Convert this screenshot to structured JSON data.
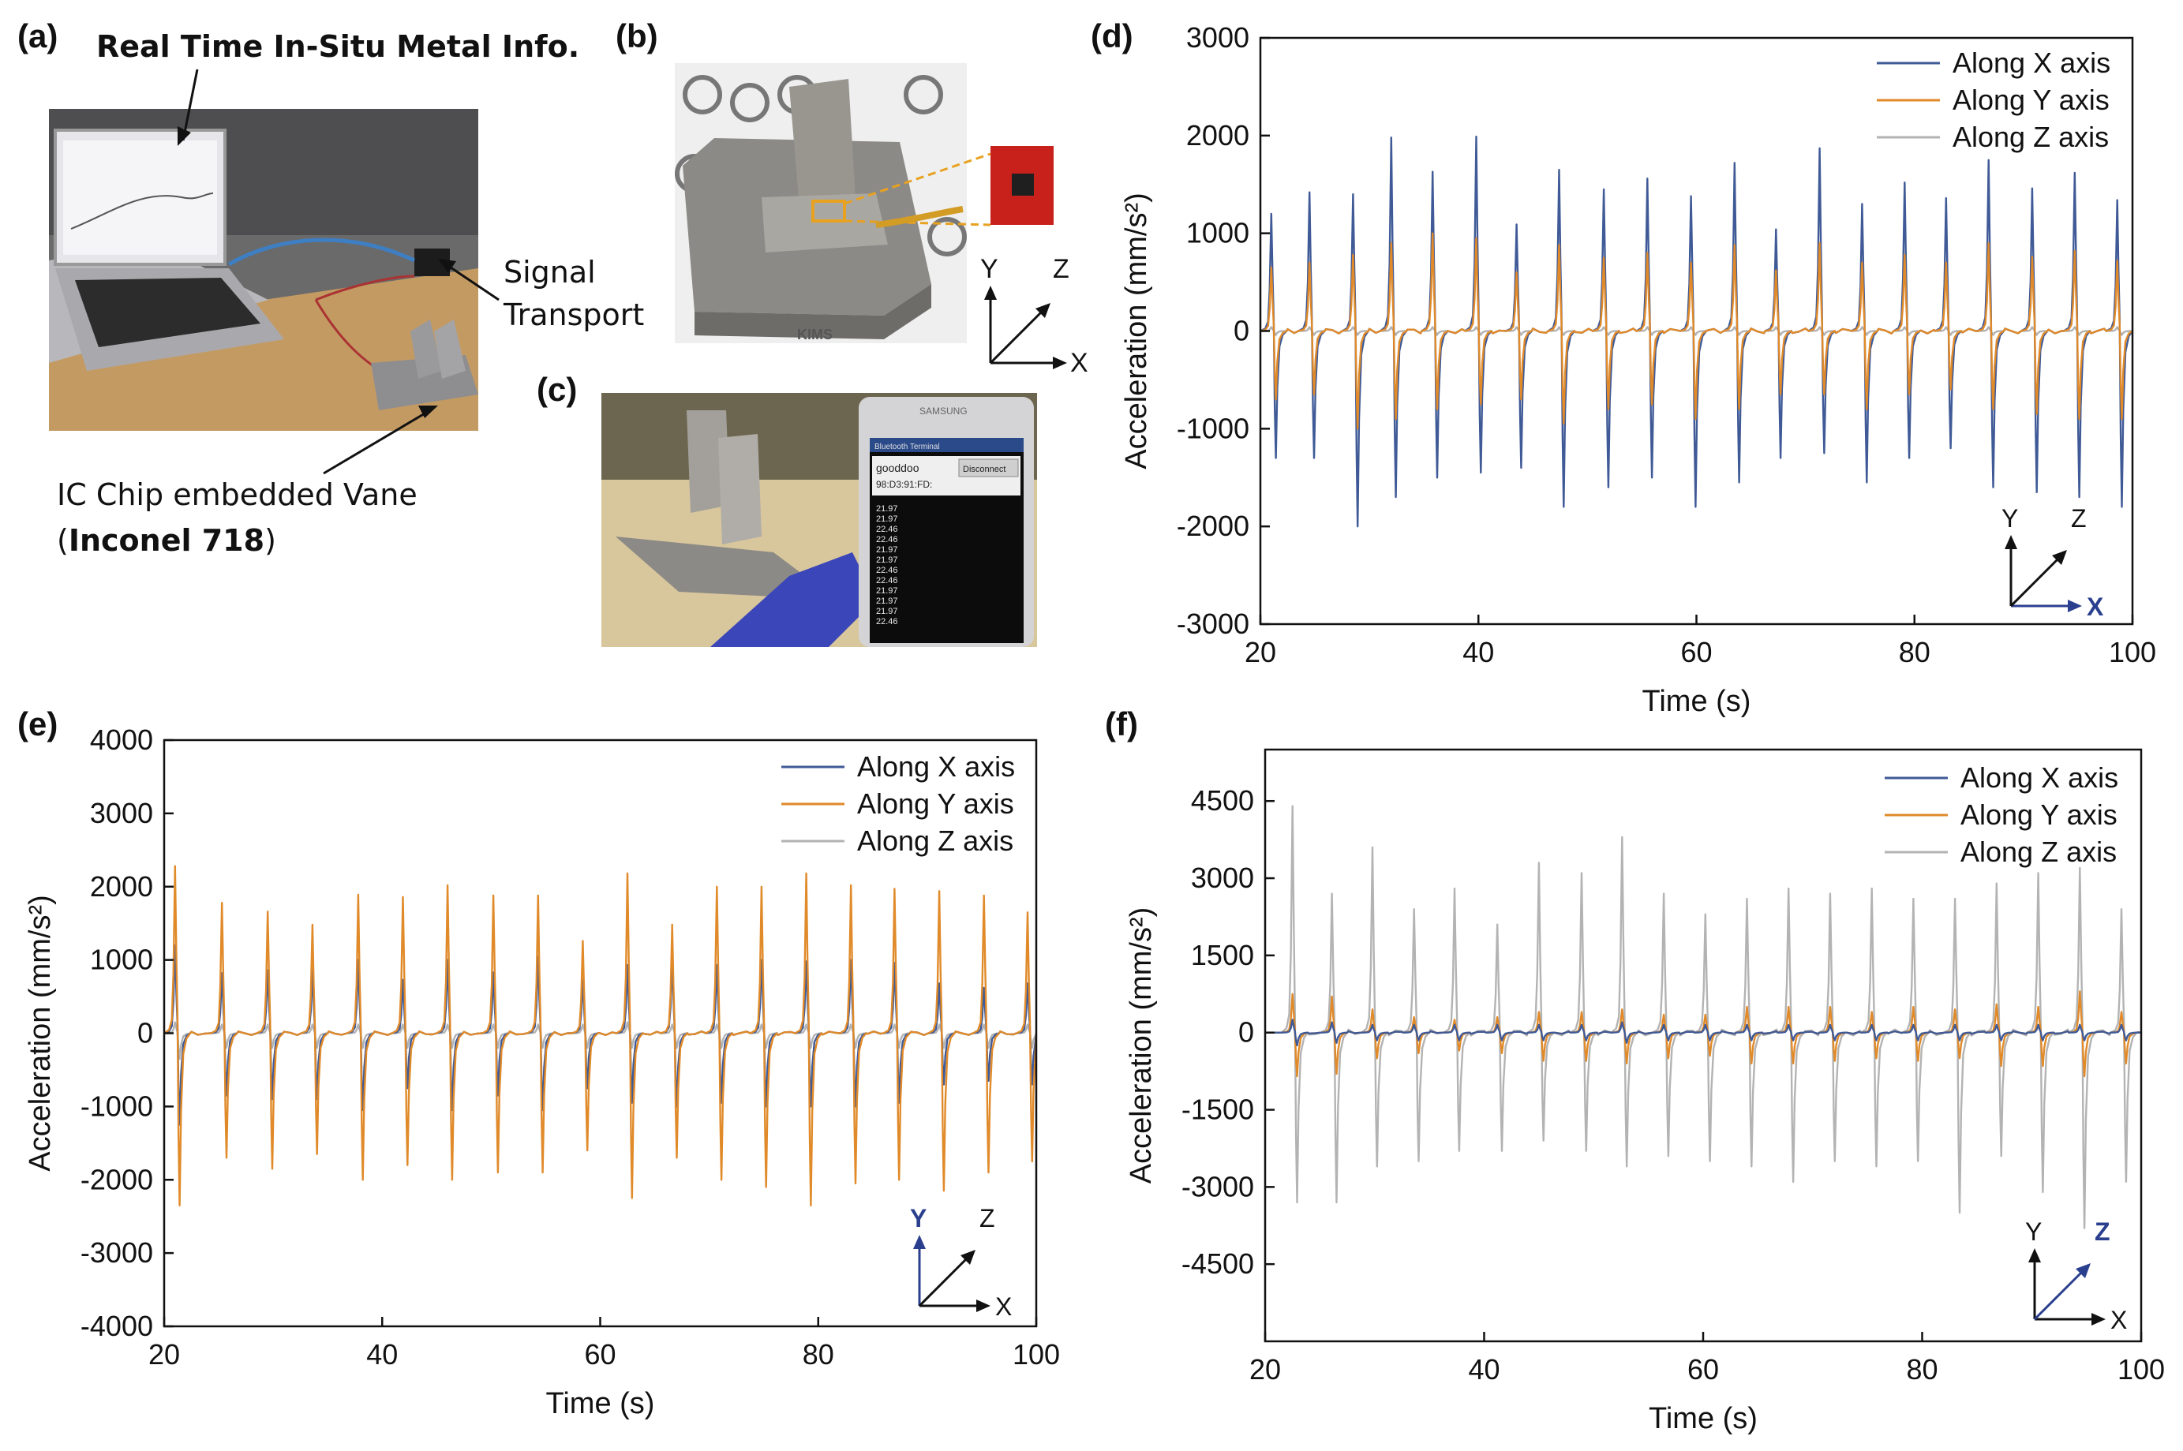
{
  "figure": {
    "panel_labels": [
      "(a)",
      "(b)",
      "(c)",
      "(d)",
      "(e)",
      "(f)"
    ],
    "panel_a": {
      "top_annotation": "Real Time In-Situ Metal Info.",
      "signal_annotation_line1": "Signal",
      "signal_annotation_line2": "Transport",
      "vane_annotation_line1": "IC Chip embedded Vane",
      "vane_annotation_paren_open": "(",
      "vane_annotation_material": "Inconel 718",
      "vane_annotation_paren_close": ")"
    },
    "panel_b": {
      "axes": {
        "y": "Y",
        "z": "Z",
        "x": "X"
      },
      "watermark": "KIMS"
    },
    "panel_c": {
      "phone_brand": "SAMSUNG",
      "app_title": "Bluetooth Terminal",
      "device_name": "gooddoo",
      "device_address": "98:D3:91:FD:",
      "disconnect_label": "Disconnect",
      "readings": [
        "21.97",
        "21.97",
        "22.46",
        "22.46",
        "21.97",
        "21.97",
        "22.46",
        "22.46",
        "21.97",
        "21.97",
        "21.97",
        "22.46"
      ]
    }
  },
  "chart_data": [
    {
      "id": "d",
      "type": "line",
      "xlabel": "Time (s)",
      "ylabel": "Acceleration (mm/s²)",
      "xlim": [
        20,
        100
      ],
      "ylim": [
        -3000,
        3000
      ],
      "xticks": [
        20,
        40,
        60,
        80,
        100
      ],
      "yticks": [
        -3000,
        -2000,
        -1000,
        0,
        1000,
        2000,
        3000
      ],
      "legend": "top-right",
      "highlight_axis": "X",
      "orientation_axes": [
        "Y",
        "Z",
        "X"
      ],
      "event_times": [
        21.0,
        24.5,
        28.5,
        32.0,
        35.8,
        39.8,
        43.5,
        47.4,
        51.5,
        55.5,
        59.5,
        63.5,
        67.3,
        71.3,
        75.2,
        79.1,
        82.9,
        86.8,
        90.8,
        94.7,
        98.6
      ],
      "series": [
        {
          "name": "Along X axis",
          "color": "#3f5a96",
          "peaks": [
            1200,
            1420,
            1400,
            1980,
            1630,
            1990,
            1090,
            1650,
            1450,
            1560,
            1380,
            1720,
            1040,
            1870,
            1300,
            1520,
            1360,
            1750,
            1460,
            1620,
            1340
          ],
          "troughs": [
            -1300,
            -1300,
            -2000,
            -1700,
            -1500,
            -1450,
            -1400,
            -1800,
            -1600,
            -1500,
            -1800,
            -1550,
            -1300,
            -1250,
            -1550,
            -1300,
            -1200,
            -1600,
            -1650,
            -1700,
            -1800
          ]
        },
        {
          "name": "Along Y axis",
          "color": "#e08a2a",
          "peaks": [
            650,
            700,
            780,
            900,
            1000,
            950,
            600,
            880,
            750,
            800,
            700,
            880,
            620,
            900,
            700,
            780,
            700,
            900,
            760,
            820,
            720
          ],
          "troughs": [
            -700,
            -650,
            -1000,
            -900,
            -800,
            -750,
            -700,
            -950,
            -800,
            -750,
            -900,
            -800,
            -650,
            -650,
            -800,
            -650,
            -600,
            -800,
            -850,
            -900,
            -900
          ]
        },
        {
          "name": "Along Z axis",
          "color": "#b3b3b3",
          "peaks": [
            40,
            40,
            40,
            40,
            40,
            40,
            40,
            40,
            40,
            40,
            40,
            40,
            40,
            40,
            40,
            40,
            40,
            40,
            40,
            40,
            40
          ],
          "troughs": [
            -40,
            -40,
            -40,
            -40,
            -40,
            -40,
            -40,
            -40,
            -40,
            -40,
            -40,
            -40,
            -40,
            -40,
            -40,
            -40,
            -40,
            -40,
            -40,
            -40,
            -40
          ]
        }
      ]
    },
    {
      "id": "e",
      "type": "line",
      "xlabel": "Time (s)",
      "ylabel": "Acceleration (mm/s²)",
      "xlim": [
        20,
        100
      ],
      "ylim": [
        -4000,
        4000
      ],
      "xticks": [
        20,
        40,
        60,
        80,
        100
      ],
      "yticks": [
        -4000,
        -3000,
        -2000,
        -1000,
        0,
        1000,
        2000,
        3000,
        4000
      ],
      "legend": "top-right",
      "highlight_axis": "Y",
      "orientation_axes": [
        "Y",
        "Z",
        "X"
      ],
      "event_times": [
        21.0,
        25.3,
        29.5,
        33.6,
        37.8,
        41.9,
        46.0,
        50.2,
        54.3,
        58.4,
        62.5,
        66.6,
        70.7,
        74.8,
        78.9,
        83.0,
        87.0,
        91.1,
        95.2,
        99.2
      ],
      "series": [
        {
          "name": "Along X axis",
          "color": "#3f5a96",
          "peaks": [
            1200,
            820,
            860,
            860,
            1000,
            730,
            1000,
            830,
            1050,
            730,
            930,
            1000,
            930,
            1000,
            980,
            1000,
            960,
            680,
            620,
            680
          ],
          "troughs": [
            -1250,
            -850,
            -900,
            -900,
            -1050,
            -750,
            -1050,
            -850,
            -1050,
            -750,
            -950,
            -1000,
            -950,
            -1000,
            -1000,
            -1000,
            -950,
            -700,
            -650,
            -700
          ]
        },
        {
          "name": "Along Y axis",
          "color": "#e08a2a",
          "peaks": [
            2280,
            1780,
            1660,
            1480,
            1890,
            1860,
            2020,
            1880,
            1880,
            1260,
            2180,
            1480,
            2000,
            2000,
            2180,
            2020,
            1970,
            1940,
            1880,
            1650
          ],
          "troughs": [
            -2350,
            -1700,
            -1850,
            -1650,
            -2000,
            -1800,
            -2000,
            -1900,
            -1900,
            -1600,
            -2250,
            -1700,
            -2000,
            -2100,
            -2350,
            -2050,
            -2000,
            -2150,
            -1900,
            -1750
          ]
        },
        {
          "name": "Along Z axis",
          "color": "#b3b3b3",
          "peaks": [
            150,
            120,
            120,
            120,
            120,
            120,
            120,
            120,
            120,
            120,
            150,
            120,
            120,
            120,
            120,
            120,
            120,
            120,
            120,
            120
          ],
          "troughs": [
            -350,
            -200,
            -200,
            -200,
            -200,
            -200,
            -200,
            -200,
            -200,
            -200,
            -200,
            -200,
            -200,
            -200,
            -200,
            -200,
            -200,
            -200,
            -200,
            -200
          ]
        }
      ]
    },
    {
      "id": "f",
      "type": "line",
      "xlabel": "Time (s)",
      "ylabel": "Acceleration (mm/s²)",
      "xlim": [
        20,
        100
      ],
      "ylim": [
        -6000,
        5500
      ],
      "xticks": [
        20,
        40,
        60,
        80,
        100
      ],
      "yticks": [
        -4500,
        -3000,
        -1500,
        0,
        1500,
        3000,
        4500
      ],
      "legend": "top-right",
      "highlight_axis": "Z",
      "orientation_axes": [
        "Y",
        "Z",
        "X"
      ],
      "event_times": [
        22.5,
        26.1,
        29.8,
        33.6,
        37.3,
        41.2,
        45.0,
        48.9,
        52.6,
        56.4,
        60.2,
        64.0,
        67.8,
        71.6,
        75.4,
        79.2,
        83.0,
        86.8,
        90.6,
        94.4,
        98.2
      ],
      "series": [
        {
          "name": "Along X axis",
          "color": "#3f5a96",
          "peaks": [
            250,
            200,
            150,
            150,
            150,
            150,
            150,
            150,
            200,
            150,
            150,
            150,
            150,
            150,
            150,
            150,
            150,
            150,
            150,
            150,
            150
          ],
          "troughs": [
            -250,
            -200,
            -150,
            -150,
            -150,
            -150,
            -150,
            -150,
            -200,
            -150,
            -150,
            -150,
            -150,
            -150,
            -150,
            -150,
            -150,
            -150,
            -150,
            -150,
            -150
          ]
        },
        {
          "name": "Along Y axis",
          "color": "#e08a2a",
          "peaks": [
            750,
            700,
            450,
            300,
            250,
            300,
            400,
            400,
            450,
            350,
            350,
            500,
            500,
            500,
            400,
            500,
            450,
            550,
            500,
            800,
            400
          ],
          "troughs": [
            -850,
            -800,
            -500,
            -400,
            -350,
            -400,
            -550,
            -550,
            -600,
            -500,
            -450,
            -600,
            -600,
            -550,
            -500,
            -550,
            -500,
            -650,
            -650,
            -850,
            -600
          ]
        },
        {
          "name": "Along Z axis",
          "color": "#b3b3b3",
          "peaks": [
            4400,
            2700,
            3600,
            2400,
            2800,
            2100,
            3300,
            3100,
            3800,
            2700,
            2300,
            2600,
            2800,
            2700,
            2800,
            2600,
            2600,
            2900,
            3100,
            3200,
            2400
          ],
          "troughs": [
            -3300,
            -3300,
            -2600,
            -2500,
            -2300,
            -2300,
            -2100,
            -2300,
            -2600,
            -2400,
            -2500,
            -2600,
            -2900,
            -2500,
            -2600,
            -2500,
            -3500,
            -2400,
            -3100,
            -3800,
            -2900
          ]
        }
      ]
    }
  ]
}
